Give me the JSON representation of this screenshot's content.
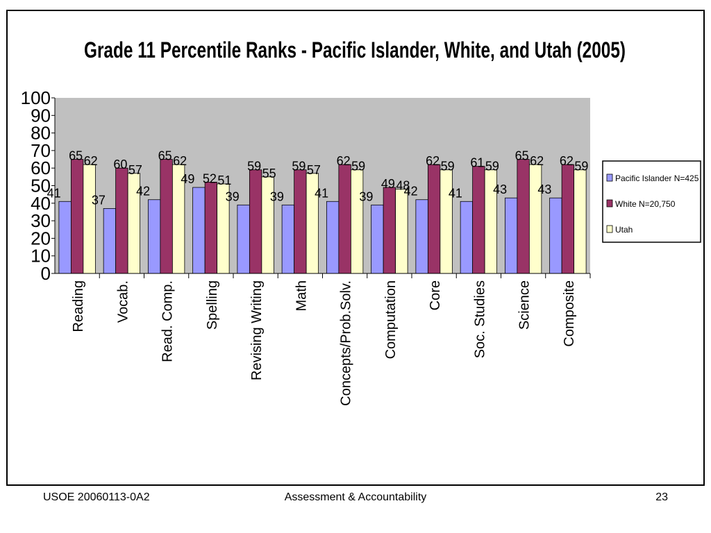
{
  "footer": {
    "left": "USOE 20060113-0A2",
    "center": "Assessment & Accountability",
    "page_number": "23"
  },
  "colors": {
    "plot_background": "#c0c0c0",
    "pacific_islander": "#9999ff",
    "white": "#993366",
    "utah": "#ffffcc"
  },
  "chart_data": {
    "type": "bar",
    "title": "Grade 11 Percentile Ranks - Pacific Islander, White, and Utah (2005)",
    "categories": [
      "Reading",
      "Vocab.",
      "Read.  Comp.",
      "Spelling",
      "Revising Writing",
      "Math",
      "Concepts/Prob.Solv.",
      "Computation",
      "Core",
      "Soc.  Studies",
      "Science",
      "Composite"
    ],
    "series": [
      {
        "name": "Pacific Islander N=425",
        "values": [
          41,
          37,
          42,
          49,
          39,
          39,
          41,
          39,
          42,
          41,
          43,
          43
        ]
      },
      {
        "name": "White N=20,750",
        "values": [
          65,
          60,
          65,
          52,
          59,
          59,
          62,
          49,
          62,
          61,
          65,
          62
        ]
      },
      {
        "name": "Utah",
        "values": [
          62,
          57,
          62,
          51,
          55,
          57,
          59,
          48,
          59,
          59,
          62,
          59
        ]
      }
    ],
    "yticks": [
      0,
      10,
      20,
      30,
      40,
      50,
      60,
      70,
      80,
      90,
      100
    ],
    "ylim": [
      0,
      100
    ],
    "xlabel": "",
    "ylabel": "",
    "grid": false,
    "legend_position": "right",
    "data_labels": true
  }
}
